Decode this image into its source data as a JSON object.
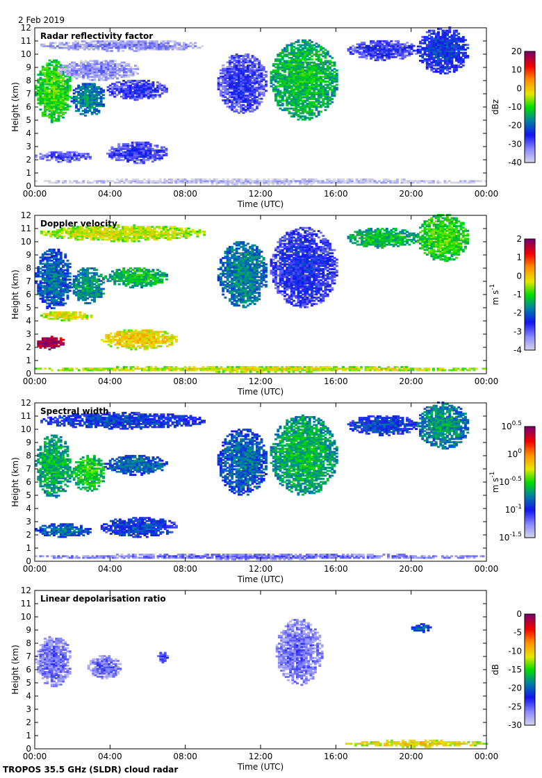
{
  "date": "2 Feb 2019",
  "footer": "TROPOS 35.5 GHz (SLDR) cloud radar",
  "chart_data": [
    {
      "type": "heatmap",
      "title": "Radar reflectivity factor",
      "xlabel": "Time (UTC)",
      "ylabel": "Height (km)",
      "xlim": [
        0,
        24
      ],
      "ylim": [
        0,
        12
      ],
      "xticks": [
        "00:00",
        "04:00",
        "08:00",
        "12:00",
        "16:00",
        "20:00",
        "00:00"
      ],
      "yticks": [
        "0",
        "1",
        "2",
        "3",
        "4",
        "5",
        "6",
        "7",
        "8",
        "9",
        "10",
        "11",
        "12"
      ],
      "colorbar": {
        "label": "dBz",
        "label_sup": "",
        "range": [
          -40,
          20
        ],
        "ticks": [
          "-40",
          "-30",
          "-20",
          "-10",
          "0",
          "10",
          "20"
        ]
      },
      "regions": [
        {
          "t": [
            0,
            1.9
          ],
          "h": [
            4.8,
            9.5
          ],
          "value": -12
        },
        {
          "t": [
            1.9,
            3.7
          ],
          "h": [
            5.3,
            7.8
          ],
          "value": -20
        },
        {
          "t": [
            3.7,
            7.0
          ],
          "h": [
            6.5,
            8.0
          ],
          "value": -30
        },
        {
          "t": [
            0.3,
            9.0
          ],
          "h": [
            10.2,
            11.0
          ],
          "value": -36
        },
        {
          "t": [
            1.2,
            5.5
          ],
          "h": [
            8.0,
            9.5
          ],
          "value": -36
        },
        {
          "t": [
            0,
            3.0
          ],
          "h": [
            1.8,
            2.6
          ],
          "value": -32
        },
        {
          "t": [
            3.8,
            7.0
          ],
          "h": [
            1.7,
            3.3
          ],
          "value": -30
        },
        {
          "t": [
            9.7,
            12.3
          ],
          "h": [
            5.5,
            10.0
          ],
          "value": -30
        },
        {
          "t": [
            12.5,
            16.0
          ],
          "h": [
            5.0,
            11.0
          ],
          "value": -15
        },
        {
          "t": [
            16.6,
            20.3
          ],
          "h": [
            9.5,
            11.0
          ],
          "value": -30
        },
        {
          "t": [
            20.3,
            23.0
          ],
          "h": [
            8.5,
            12.0
          ],
          "value": -26
        },
        {
          "t": [
            0,
            24
          ],
          "h": [
            0.1,
            0.5
          ],
          "value": -40
        }
      ]
    },
    {
      "type": "heatmap",
      "title": "Doppler velocity",
      "xlabel": "Time (UTC)",
      "ylabel": "Height (km)",
      "xlim": [
        0,
        24
      ],
      "ylim": [
        0,
        12
      ],
      "xticks": [
        "00:00",
        "04:00",
        "08:00",
        "12:00",
        "16:00",
        "20:00",
        "00:00"
      ],
      "yticks": [
        "0",
        "1",
        "2",
        "3",
        "4",
        "5",
        "6",
        "7",
        "8",
        "9",
        "10",
        "11",
        "12"
      ],
      "colorbar": {
        "label": "m s",
        "label_sup": "-1",
        "range": [
          -4,
          2
        ],
        "ticks": [
          "-4",
          "-3",
          "-2",
          "-1",
          "0",
          "1",
          "2"
        ]
      },
      "regions": [
        {
          "t": [
            0,
            1.9
          ],
          "h": [
            4.8,
            9.5
          ],
          "value": -2.2
        },
        {
          "t": [
            1.9,
            3.7
          ],
          "h": [
            5.3,
            8.0
          ],
          "value": -1.8
        },
        {
          "t": [
            3.7,
            7.0
          ],
          "h": [
            6.5,
            8.0
          ],
          "value": -1.5
        },
        {
          "t": [
            0.3,
            9.0
          ],
          "h": [
            10.0,
            11.2
          ],
          "value": -0.6
        },
        {
          "t": [
            0,
            1.5
          ],
          "h": [
            1.8,
            2.8
          ],
          "value": 1.5
        },
        {
          "t": [
            3.5,
            7.5
          ],
          "h": [
            1.8,
            3.3
          ],
          "value": -0.3
        },
        {
          "t": [
            0.3,
            3.0
          ],
          "h": [
            4.0,
            4.7
          ],
          "value": -0.5
        },
        {
          "t": [
            9.7,
            12.3
          ],
          "h": [
            5.0,
            10.0
          ],
          "value": -2.0
        },
        {
          "t": [
            12.5,
            16.0
          ],
          "h": [
            5.0,
            11.0
          ],
          "value": -2.8
        },
        {
          "t": [
            16.6,
            20.3
          ],
          "h": [
            9.5,
            11.0
          ],
          "value": -1.5
        },
        {
          "t": [
            20.3,
            23.0
          ],
          "h": [
            8.5,
            12.0
          ],
          "value": -1.2
        },
        {
          "t": [
            0,
            24
          ],
          "h": [
            0.1,
            0.5
          ],
          "value": -0.6
        }
      ]
    },
    {
      "type": "heatmap",
      "title": "Spectral width",
      "xlabel": "Time (UTC)",
      "ylabel": "Height (km)",
      "xlim": [
        0,
        24
      ],
      "ylim": [
        0,
        12
      ],
      "xticks": [
        "00:00",
        "04:00",
        "08:00",
        "12:00",
        "16:00",
        "20:00",
        "00:00"
      ],
      "yticks": [
        "0",
        "1",
        "2",
        "3",
        "4",
        "5",
        "6",
        "7",
        "8",
        "9",
        "10",
        "11",
        "12"
      ],
      "colorbar": {
        "label": "m s",
        "label_sup": "-1",
        "range": [
          -1.5,
          0.5
        ],
        "scale": "log10",
        "ticks": [
          "10^-1.5",
          "10^-1",
          "10^-0.5",
          "10^0",
          "10^0.5"
        ]
      },
      "regions": [
        {
          "t": [
            0,
            1.9
          ],
          "h": [
            4.8,
            9.5
          ],
          "value": -0.7
        },
        {
          "t": [
            1.9,
            3.7
          ],
          "h": [
            5.3,
            8.0
          ],
          "value": -0.6
        },
        {
          "t": [
            3.7,
            7.0
          ],
          "h": [
            6.5,
            8.0
          ],
          "value": -0.9
        },
        {
          "t": [
            0.3,
            9.0
          ],
          "h": [
            10.0,
            11.2
          ],
          "value": -1.0
        },
        {
          "t": [
            0,
            3.0
          ],
          "h": [
            1.8,
            2.8
          ],
          "value": -0.9
        },
        {
          "t": [
            3.5,
            7.5
          ],
          "h": [
            1.8,
            3.3
          ],
          "value": -1.0
        },
        {
          "t": [
            9.7,
            12.3
          ],
          "h": [
            5.0,
            10.0
          ],
          "value": -0.9
        },
        {
          "t": [
            12.5,
            16.0
          ],
          "h": [
            5.0,
            11.0
          ],
          "value": -0.7
        },
        {
          "t": [
            16.6,
            20.3
          ],
          "h": [
            9.5,
            11.0
          ],
          "value": -1.0
        },
        {
          "t": [
            20.3,
            23.0
          ],
          "h": [
            8.5,
            12.0
          ],
          "value": -0.8
        },
        {
          "t": [
            0,
            24
          ],
          "h": [
            0.1,
            0.5
          ],
          "value": -1.3
        }
      ]
    },
    {
      "type": "heatmap",
      "title": "Linear depolarisation ratio",
      "xlabel": "Time (UTC)",
      "ylabel": "Height (km)",
      "xlim": [
        0,
        24
      ],
      "ylim": [
        0,
        12
      ],
      "xticks": [
        "00:00",
        "04:00",
        "08:00",
        "12:00",
        "16:00",
        "20:00",
        "00:00"
      ],
      "yticks": [
        "0",
        "1",
        "2",
        "3",
        "4",
        "5",
        "6",
        "7",
        "8",
        "9",
        "10",
        "11",
        "12"
      ],
      "colorbar": {
        "label": "dB",
        "label_sup": "",
        "range": [
          -30,
          0
        ],
        "ticks": [
          "-30",
          "-25",
          "-20",
          "-15",
          "-10",
          "-5",
          "0"
        ]
      },
      "regions": [
        {
          "t": [
            0,
            1.9
          ],
          "h": [
            4.7,
            8.5
          ],
          "value": -27
        },
        {
          "t": [
            2.8,
            4.5
          ],
          "h": [
            5.3,
            7.0
          ],
          "value": -27
        },
        {
          "t": [
            6.5,
            7.0
          ],
          "h": [
            6.5,
            7.3
          ],
          "value": -25
        },
        {
          "t": [
            12.8,
            15.2
          ],
          "h": [
            4.8,
            9.8
          ],
          "value": -27
        },
        {
          "t": [
            20.0,
            21.0
          ],
          "h": [
            8.8,
            9.4
          ],
          "value": -22
        },
        {
          "t": [
            16.5,
            24
          ],
          "h": [
            0.1,
            0.6
          ],
          "value": -12
        }
      ]
    }
  ]
}
